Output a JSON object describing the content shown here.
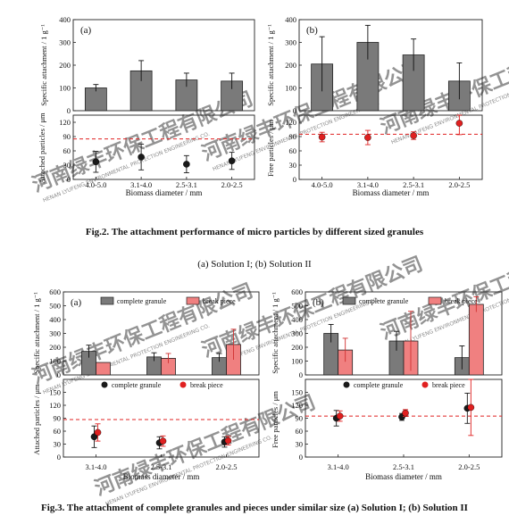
{
  "captions": {
    "fig2": "Fig.2. The attachment performance of micro particles by different sized granules",
    "fig2_sub": "(a) Solution I; (b) Solution II",
    "fig3": "Fig.3. The attachment of complete granules and pieces under similar size (a) Solution I; (b) Solution II"
  },
  "watermark": {
    "cn": "河南绿丰环保工程有限公司",
    "en": "HENAN LYUFENG ENVIRONMENTAL PROTECTION ENGINEERING CO."
  },
  "colors": {
    "gray_bar": "#7a7a7a",
    "pink_bar": "#f08080",
    "dark_point": "#1a1a1a",
    "red_point": "#e02020",
    "dash_line": "#e02020",
    "watermark": "#b9d7ee"
  },
  "chart_data": [
    {
      "id": "fig2a",
      "panel_label": "(a)",
      "type": "bar+scatter",
      "xlabel": "Biomass diameter / mm",
      "categories": [
        "4.0-5.0",
        "3.1-4.0",
        "2.5-3.1",
        "2.0-2.5"
      ],
      "top": {
        "ylabel": "Specific attachment / 1 g⁻¹",
        "ylim": [
          0,
          400
        ],
        "yticks": [
          0,
          100,
          200,
          300,
          400
        ],
        "series": [
          {
            "values": [
              100,
              175,
              135,
              130
            ],
            "errors": [
              15,
              45,
              30,
              35
            ],
            "color": "#7a7a7a"
          }
        ]
      },
      "bottom": {
        "ylabel": "Attached particles / μm",
        "ylim": [
          0,
          135
        ],
        "yticks": [
          0,
          30,
          60,
          90,
          120
        ],
        "series": [
          {
            "values": [
              37,
              47,
              32,
              39
            ],
            "errors": [
              22,
              27,
              18,
              18
            ],
            "color": "#1a1a1a"
          }
        ],
        "dashed_y": 85
      }
    },
    {
      "id": "fig2b",
      "panel_label": "(b)",
      "type": "bar+scatter",
      "xlabel": "Biomass diameter / mm",
      "categories": [
        "4.0-5.0",
        "3.1-4.0",
        "2.5-3.1",
        "2.0-2.5"
      ],
      "top": {
        "ylabel": "Specific attachment / 1 g⁻¹",
        "ylim": [
          0,
          400
        ],
        "yticks": [
          0,
          100,
          200,
          300,
          400
        ],
        "series": [
          {
            "values": [
              205,
              300,
              245,
              130
            ],
            "errors": [
              120,
              75,
              70,
              80
            ],
            "color": "#7a7a7a"
          }
        ]
      },
      "bottom": {
        "ylabel": "Free particles / μm",
        "ylim": [
          0,
          135
        ],
        "yticks": [
          0,
          30,
          60,
          90,
          120
        ],
        "series": [
          {
            "values": [
              89,
              88,
              92,
              118
            ],
            "errors": [
              10,
              15,
              8,
              24
            ],
            "color": "#e02020"
          }
        ],
        "dashed_y": 95
      }
    },
    {
      "id": "fig3a",
      "panel_label": "(a)",
      "type": "bar+scatter",
      "xlabel": "Biomass diameter / mm",
      "categories": [
        "3.1-4.0",
        "2.5-3.1",
        "2.0-2.5"
      ],
      "top": {
        "ylabel": "Specific attachment / 1 g⁻¹",
        "ylim": [
          0,
          600
        ],
        "yticks": [
          0,
          100,
          200,
          300,
          400,
          500,
          600
        ],
        "legend": [
          "complete granule",
          "break piece"
        ],
        "series": [
          {
            "name": "complete granule",
            "values": [
              170,
              130,
              125
            ],
            "errors": [
              45,
              30,
              30
            ],
            "color": "#7a7a7a"
          },
          {
            "name": "break piece",
            "values": [
              90,
              120,
              220
            ],
            "errors": [
              0,
              35,
              110
            ],
            "color": "#f08080"
          }
        ]
      },
      "bottom": {
        "ylabel": "Attached particles / μm",
        "ylim": [
          0,
          180
        ],
        "yticks": [
          0,
          30,
          60,
          90,
          120,
          150
        ],
        "legend": [
          "complete granule",
          "break piece"
        ],
        "series": [
          {
            "name": "complete granule",
            "values": [
              47,
              33,
              35
            ],
            "errors": [
              25,
              14,
              12
            ],
            "color": "#1a1a1a"
          },
          {
            "name": "break piece",
            "values": [
              57,
              37,
              38
            ],
            "errors": [
              20,
              12,
              10
            ],
            "color": "#e02020"
          }
        ],
        "dashed_y": 87
      }
    },
    {
      "id": "fig3b",
      "panel_label": "(b)",
      "type": "bar+scatter",
      "xlabel": "Biomass diameter / mm",
      "categories": [
        "3.1-4.0",
        "2.5-3.1",
        "2.0-2.5"
      ],
      "top": {
        "ylabel": "Specific attachment / 1 g⁻¹",
        "ylim": [
          0,
          600
        ],
        "yticks": [
          0,
          100,
          200,
          300,
          400,
          500,
          600
        ],
        "legend": [
          "complete granule",
          "break piece"
        ],
        "series": [
          {
            "name": "complete granule",
            "values": [
              300,
              245,
              125
            ],
            "errors": [
              65,
              70,
              85
            ],
            "color": "#7a7a7a"
          },
          {
            "name": "break piece",
            "values": [
              180,
              245,
              510
            ],
            "errors": [
              85,
              215,
              55
            ],
            "color": "#f08080"
          }
        ]
      },
      "bottom": {
        "ylabel": "Free particles / μm",
        "ylim": [
          0,
          180
        ],
        "yticks": [
          0,
          30,
          60,
          90,
          120,
          150
        ],
        "legend": [
          "complete granule",
          "break piece"
        ],
        "series": [
          {
            "name": "complete granule",
            "values": [
              90,
              93,
              113
            ],
            "errors": [
              18,
              8,
              35
            ],
            "color": "#1a1a1a"
          },
          {
            "name": "break piece",
            "values": [
              95,
              102,
              115
            ],
            "errors": [
              12,
              8,
              65
            ],
            "color": "#e02020"
          }
        ],
        "dashed_y": 95
      }
    }
  ]
}
